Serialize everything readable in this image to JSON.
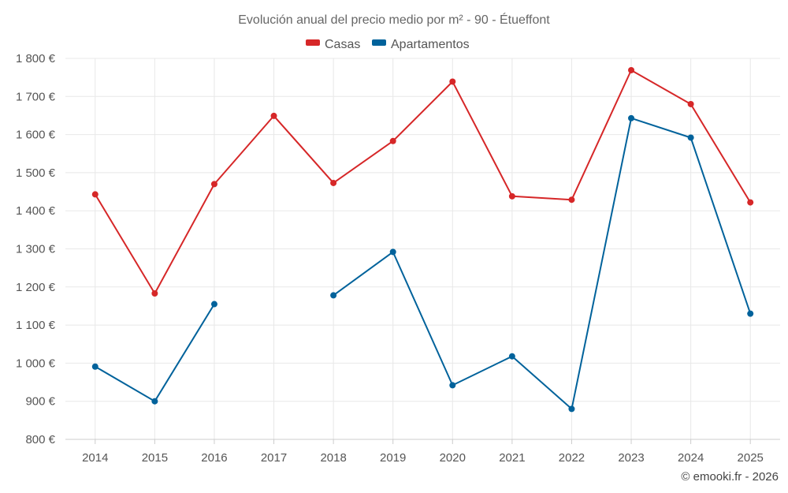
{
  "chart_data": {
    "type": "line",
    "title": "Evolución anual del precio medio por m² - 90 - Étueffont",
    "xlabel": "",
    "ylabel": "",
    "categories": [
      "2014",
      "2015",
      "2016",
      "2017",
      "2018",
      "2019",
      "2020",
      "2021",
      "2022",
      "2023",
      "2024",
      "2025"
    ],
    "ylim": [
      800,
      1800
    ],
    "yticks": [
      800,
      900,
      1000,
      1100,
      1200,
      1300,
      1400,
      1500,
      1600,
      1700,
      1800
    ],
    "ytick_labels": [
      "800 €",
      "900 €",
      "1 000 €",
      "1 100 €",
      "1 200 €",
      "1 300 €",
      "1 400 €",
      "1 500 €",
      "1 600 €",
      "1 700 €",
      "1 800 €"
    ],
    "grid": true,
    "legend_position": "top-center",
    "series": [
      {
        "name": "Casas",
        "color": "#d62728",
        "values": [
          1443,
          1183,
          1470,
          1649,
          1473,
          1583,
          1739,
          1438,
          1429,
          1769,
          1680,
          1422
        ]
      },
      {
        "name": "Apartamentos",
        "color": "#00629b",
        "values": [
          991,
          900,
          1155,
          null,
          1178,
          1292,
          942,
          1018,
          880,
          1643,
          1592,
          1130
        ]
      }
    ],
    "credit": "© emooki.fr - 2026"
  }
}
